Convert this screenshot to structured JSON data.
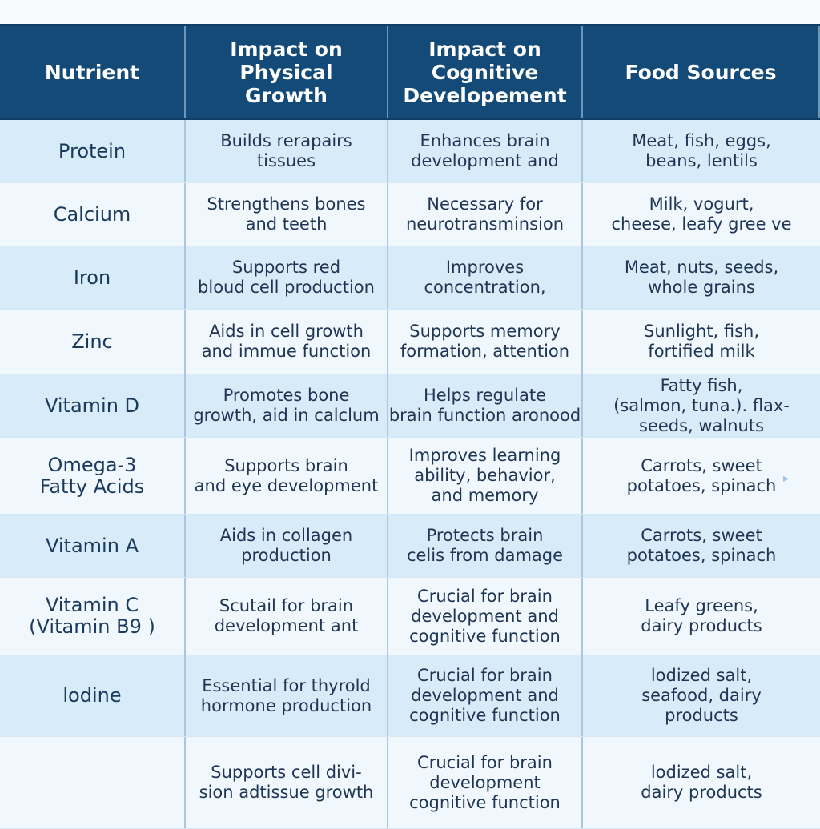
{
  "headers": {
    "nutrient": "Nutrient",
    "physical": "Impact on\nPhysical\nGrowth",
    "cognitive": "Impact on\nCognitive\nDevelopement",
    "food": "Food Sources"
  },
  "rows": [
    {
      "nutrient": "Protein",
      "physical": "Builds rerapairs\ntissues",
      "cognitive": "Enhances brain\ndevelopment and",
      "food": "Meat, fish, eggs,\nbeans, lentils"
    },
    {
      "nutrient": "Calcium",
      "physical": "Strengthens bones\nand teeth",
      "cognitive": "Necessary for\nneurotransminsion",
      "food": "Milk, vogurt,\ncheese, leafy gree ve"
    },
    {
      "nutrient": "Iron",
      "physical": "Supports red\nbloud cell production",
      "cognitive": "Improves\nconcentration,",
      "food": "Meat, nuts, seeds,\nwhole grains"
    },
    {
      "nutrient": "Zinc",
      "physical": "Aids in cell growth\nand immue function",
      "cognitive": "Supports memory\nformation, attention",
      "food": "Sunlight, fish,\nfortified milk"
    },
    {
      "nutrient": "Vitamin D",
      "physical": "Promotes bone\ngrowth, aid in calclum",
      "cognitive": "Helps regulate\nbrain function aronood",
      "food": "Fatty fish,\n(salmon, tuna.). flax-\nseeds, walnuts"
    },
    {
      "nutrient": "Omega-3\nFatty Acids",
      "physical": "Supports brain\nand eye development",
      "cognitive": "Improves learning\nability, behavior,\nand memory",
      "food": "Carrots, sweet\npotatoes, spinach"
    },
    {
      "nutrient": "Vitamin A",
      "physical": "Aids in collagen\nproduction",
      "cognitive": "Protects brain\ncelis from damage",
      "food": "Carrots, sweet\npotatoes, spinach"
    },
    {
      "nutrient": "Vitamin C\n(Vitamin B9 )",
      "physical": "Scutail for brain\ndevelopment ant",
      "cognitive": "Crucial for brain\ndevelopment and\ncognitive function",
      "food": "Leafy greens,\ndairy products"
    },
    {
      "nutrient": "lodine",
      "physical": "Essential for thyrold\nhormone production",
      "cognitive": "Crucial for brain\ndevelopment and\ncognitive function",
      "food": "lodized salt,\nseafood, dairy\nproducts"
    },
    {
      "nutrient": "",
      "physical": "Supports cell divi-\nsion adtissue growth",
      "cognitive": "Crucial for brain\ndevelopment\ncognitive function",
      "food": "lodized salt,\ndairy products"
    }
  ],
  "colors": {
    "header_bg": "#134a77",
    "row_dark": "#d8ebf8",
    "row_light": "#f1f8fd"
  }
}
